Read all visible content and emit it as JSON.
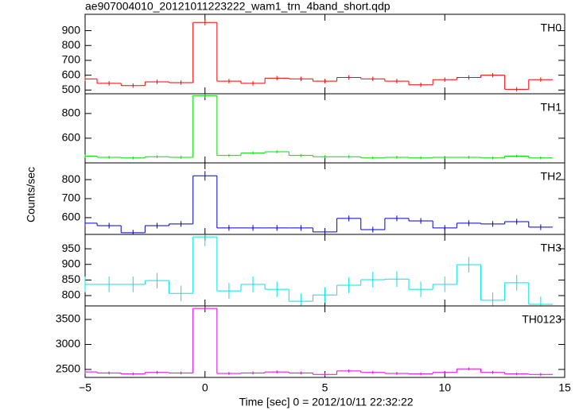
{
  "chart_data": [
    {
      "type": "step",
      "title": "ae907004010_20121011223222_wam1_trn_4band_short.qdp",
      "label": "TH0",
      "color": "#ff0000",
      "x": [
        -5,
        -4,
        -3,
        -2,
        -1,
        0,
        1,
        2,
        3,
        4,
        5,
        6,
        7,
        8,
        9,
        10,
        11,
        12,
        13,
        14
      ],
      "values": [
        575,
        545,
        530,
        555,
        550,
        955,
        560,
        545,
        580,
        575,
        560,
        585,
        575,
        560,
        535,
        570,
        585,
        600,
        505,
        570
      ],
      "errors": [
        15,
        15,
        15,
        15,
        15,
        20,
        15,
        15,
        15,
        15,
        15,
        15,
        15,
        15,
        15,
        15,
        15,
        15,
        15,
        15
      ],
      "xlim": [
        -5,
        15
      ],
      "ylim": [
        475,
        1010
      ],
      "yticks": [
        500,
        600,
        700,
        800,
        900
      ]
    },
    {
      "type": "step",
      "label": "TH1",
      "color": "#00e000",
      "x": [
        -5,
        -4,
        -3,
        -2,
        -1,
        0,
        1,
        2,
        3,
        4,
        5,
        6,
        7,
        8,
        9,
        10,
        11,
        12,
        13,
        14
      ],
      "values": [
        455,
        445,
        440,
        450,
        445,
        945,
        460,
        480,
        490,
        460,
        450,
        450,
        440,
        445,
        440,
        445,
        445,
        440,
        455,
        440
      ],
      "errors": [
        12,
        12,
        12,
        12,
        12,
        18,
        12,
        12,
        12,
        12,
        12,
        12,
        12,
        12,
        12,
        12,
        12,
        12,
        12,
        12
      ],
      "xlim": [
        -5,
        15
      ],
      "ylim": [
        400,
        960
      ],
      "yticks": [
        600,
        800
      ]
    },
    {
      "type": "step",
      "label": "TH2",
      "color": "#0000cc",
      "ylabel": "Counts/sec",
      "x": [
        -5,
        -4,
        -3,
        -2,
        -1,
        0,
        1,
        2,
        3,
        4,
        5,
        6,
        7,
        8,
        9,
        10,
        11,
        12,
        13,
        14
      ],
      "values": [
        571,
        558,
        521,
        558,
        567,
        820,
        546,
        546,
        546,
        546,
        525,
        596,
        537,
        596,
        583,
        546,
        571,
        567,
        579,
        550
      ],
      "errors": [
        15,
        15,
        15,
        15,
        15,
        25,
        15,
        15,
        15,
        15,
        15,
        15,
        15,
        15,
        15,
        15,
        15,
        15,
        15,
        15
      ],
      "xlim": [
        -5,
        15
      ],
      "ylim": [
        512,
        888
      ],
      "yticks": [
        600,
        700,
        800
      ]
    },
    {
      "type": "step",
      "label": "TH3",
      "color": "#00e5e5",
      "x": [
        -5,
        -4,
        -3,
        -2,
        -1,
        0,
        1,
        2,
        3,
        4,
        5,
        6,
        7,
        8,
        9,
        10,
        11,
        12,
        13,
        14
      ],
      "values": [
        836,
        836,
        836,
        848,
        807,
        988,
        815,
        836,
        820,
        782,
        802,
        833,
        851,
        853,
        820,
        836,
        899,
        785,
        841,
        772
      ],
      "errors": [
        25,
        25,
        25,
        25,
        25,
        30,
        25,
        25,
        25,
        25,
        25,
        25,
        25,
        25,
        25,
        25,
        25,
        25,
        25,
        25
      ],
      "xlim": [
        -5,
        15
      ],
      "ylim": [
        767,
        996
      ],
      "yticks": [
        800,
        850,
        900,
        950
      ]
    },
    {
      "type": "step",
      "label": "TH0123",
      "color": "#e600e6",
      "xlabel": "Time [sec] 0 = 2012/10/11 22:32:22",
      "x": [
        -5,
        -4,
        -3,
        -2,
        -1,
        0,
        1,
        2,
        3,
        4,
        5,
        6,
        7,
        8,
        9,
        10,
        11,
        12,
        13,
        14
      ],
      "values": [
        2450,
        2430,
        2410,
        2440,
        2430,
        3720,
        2420,
        2430,
        2450,
        2430,
        2400,
        2470,
        2440,
        2420,
        2410,
        2440,
        2510,
        2440,
        2410,
        2400
      ],
      "errors": [
        30,
        30,
        30,
        30,
        30,
        40,
        30,
        30,
        30,
        30,
        30,
        30,
        30,
        30,
        30,
        30,
        30,
        30,
        30,
        30
      ],
      "xlim": [
        -5,
        15
      ],
      "xticks": [
        {
          "value": -5,
          "label": "−5"
        },
        0,
        5,
        10,
        15
      ],
      "ylim": [
        2340,
        3770
      ],
      "yticks": [
        2500,
        3000,
        3500
      ]
    }
  ]
}
